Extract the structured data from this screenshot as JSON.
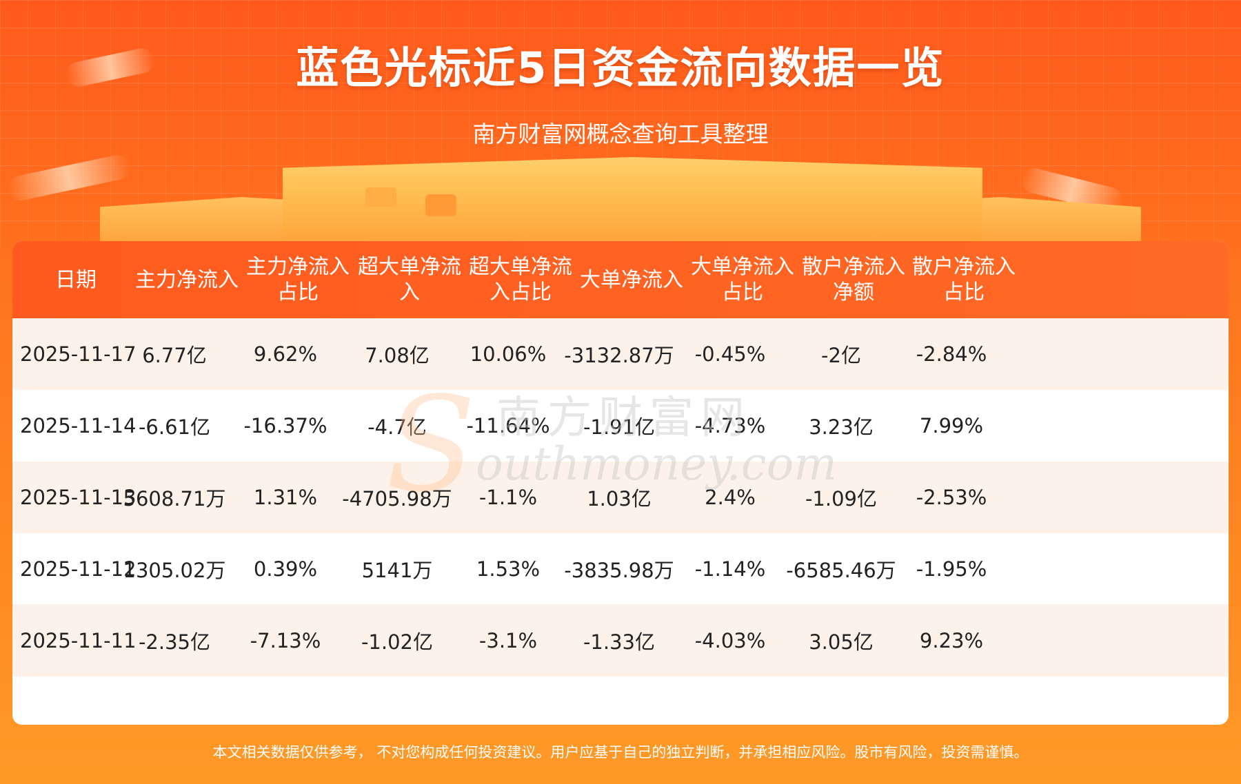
{
  "header": {
    "title": "蓝色光标近5日资金流向数据一览",
    "subtitle": "南方财富网概念查询工具整理"
  },
  "watermark": {
    "cn": "南方财富网",
    "en": "outhmoney.com",
    "s": "S"
  },
  "chart_data": {
    "type": "table",
    "columns": [
      "日期",
      "主力净流入",
      "主力净流入\n占比",
      "超大单净流\n入",
      "超大单净流\n入占比",
      "大单净流入",
      "大单净流入\n占比",
      "散户净流入\n净额",
      "散户净流入\n占比"
    ],
    "rows": [
      [
        "2025-11-17",
        "6.77亿",
        "9.62%",
        "7.08亿",
        "10.06%",
        "-3132.87万",
        "-0.45%",
        "-2亿",
        "-2.84%"
      ],
      [
        "2025-11-14",
        "-6.61亿",
        "-16.37%",
        "-4.7亿",
        "-11.64%",
        "-1.91亿",
        "-4.73%",
        "3.23亿",
        "7.99%"
      ],
      [
        "2025-11-13",
        "5608.71万",
        "1.31%",
        "-4705.98万",
        "-1.1%",
        "1.03亿",
        "2.4%",
        "-1.09亿",
        "-2.53%"
      ],
      [
        "2025-11-12",
        "1305.02万",
        "0.39%",
        "5141万",
        "1.53%",
        "-3835.98万",
        "-1.14%",
        "-6585.46万",
        "-1.95%"
      ],
      [
        "2025-11-11",
        "-2.35亿",
        "-7.13%",
        "-1.02亿",
        "-3.1%",
        "-1.33亿",
        "-4.03%",
        "3.05亿",
        "9.23%"
      ]
    ]
  },
  "footer": {
    "disclaimer": "本文相关数据仅供参考， 不对您构成任何投资建议。用户应基于自己的独立判断，并承担相应风险。股市有风险，投资需谨慎。"
  },
  "colors": {
    "header_bg": "#ff5a1f",
    "row_alt_bg": "#fdf2e9",
    "text": "#222222"
  }
}
